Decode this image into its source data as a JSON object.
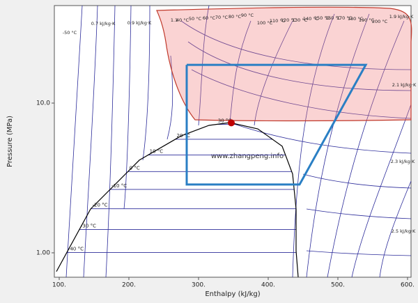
{
  "chart_data": {
    "type": "line",
    "x_label": "Enthalpy (kJ/kg)",
    "y_label": "Pressure (MPa)",
    "xlim": [
      93,
      605
    ],
    "ylim": [
      0.687,
      44.8
    ],
    "log_y": true,
    "xticks": [
      {
        "value": 100,
        "label": "100."
      },
      {
        "value": 200,
        "label": "200."
      },
      {
        "value": 300,
        "label": "300."
      },
      {
        "value": 400,
        "label": "400."
      },
      {
        "value": 500,
        "label": "500."
      },
      {
        "value": 600,
        "label": "600."
      }
    ],
    "yticks": [
      {
        "value": 1,
        "label": "1.00"
      },
      {
        "value": 10,
        "label": "10.0"
      }
    ],
    "series": [
      {
        "name": "Saturation",
        "color": "#000000",
        "x": [
          96,
          145,
          215,
          275,
          315,
          345,
          385,
          420,
          435,
          440,
          440,
          443
        ],
        "values": [
          0.75,
          1.96,
          4.16,
          6.04,
          7.1,
          7.41,
          6.73,
          5.15,
          3.36,
          1.96,
          1.03,
          0.69
        ]
      },
      {
        "name": "Cycle",
        "color": "#2a7fc4",
        "x": [
          283,
          540,
          445,
          283,
          283
        ],
        "values": [
          18.0,
          18.0,
          2.86,
          2.86,
          18.0
        ]
      }
    ],
    "critical_point": {
      "x": 347,
      "y": 7.38,
      "color": "#c00000"
    },
    "isotherms": [
      {
        "label": "-40 °C",
        "value": 1.005
      },
      {
        "label": "-30 °C",
        "value": 1.43
      },
      {
        "label": "-20 °C",
        "value": 1.97
      },
      {
        "label": "-10 °C",
        "value": 2.65
      },
      {
        "label": "0 °C",
        "value": 3.49
      },
      {
        "label": "10 °C",
        "value": 4.5
      },
      {
        "label": "20 °C",
        "value": 5.73
      },
      {
        "label": "30 °C",
        "value": 7.21
      }
    ],
    "watermark": "www.zhangpeng.info",
    "top_labels": [
      "-50 °C",
      "0.7 kJ/kg·K",
      "0.9 kJ/kg·K",
      "1.1",
      "40 °C",
      "50 °C",
      "60 °C",
      "70 °C",
      "80 °C",
      "90 °C",
      "100 °C",
      "110 °C",
      "120 °C",
      "130 °C",
      "140 °C",
      "150 °C",
      "160 °C",
      "170 °C",
      "180 °C",
      "190 °C",
      "200 °C",
      "1.9 kJ/kg·K",
      "2.1 kJ/kg·K",
      "2.3 kJ/kg·K",
      "2.5 kJ/kg·K"
    ]
  }
}
